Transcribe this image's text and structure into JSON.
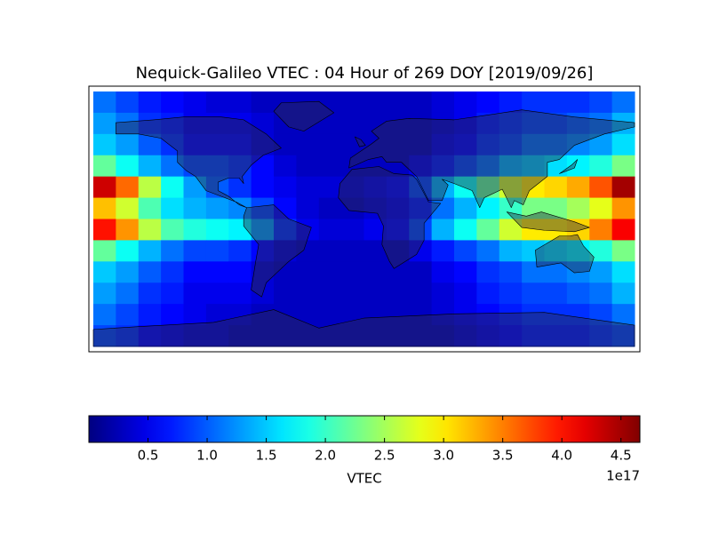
{
  "chart_data": {
    "type": "heatmap",
    "title": "Nequick-Galileo VTEC : 04 Hour of 269 DOY [2019/09/26]",
    "colormap": "jet",
    "values": [
      [
        1.1,
        0.9,
        0.7,
        0.6,
        0.5,
        0.4,
        0.4,
        0.3,
        0.3,
        0.3,
        0.3,
        0.3,
        0.3,
        0.3,
        0.3,
        0.4,
        0.5,
        0.6,
        0.7,
        0.8,
        0.8,
        0.8,
        0.9,
        1.1
      ],
      [
        1.3,
        1.1,
        0.8,
        0.7,
        0.5,
        0.5,
        0.5,
        0.4,
        0.3,
        0.3,
        0.3,
        0.3,
        0.3,
        0.3,
        0.3,
        0.4,
        0.5,
        0.7,
        0.8,
        0.9,
        0.9,
        1.0,
        1.1,
        1.4
      ],
      [
        1.5,
        1.3,
        1.0,
        0.8,
        0.6,
        0.6,
        0.6,
        0.4,
        0.3,
        0.3,
        0.3,
        0.3,
        0.3,
        0.3,
        0.3,
        0.5,
        0.6,
        0.8,
        0.9,
        1.1,
        1.1,
        1.2,
        1.3,
        1.6
      ],
      [
        2.2,
        1.8,
        1.4,
        1.1,
        0.9,
        0.9,
        0.8,
        0.6,
        0.4,
        0.3,
        0.3,
        0.3,
        0.3,
        0.3,
        0.5,
        0.7,
        0.9,
        1.1,
        1.4,
        1.5,
        1.6,
        1.7,
        1.9,
        2.3
      ],
      [
        4.3,
        3.6,
        2.6,
        1.8,
        1.3,
        1.0,
        0.8,
        0.6,
        0.5,
        0.4,
        0.4,
        0.4,
        0.5,
        0.6,
        0.9,
        1.4,
        1.8,
        2.2,
        2.7,
        3.0,
        3.1,
        3.3,
        3.7,
        4.5
      ],
      [
        3.2,
        2.7,
        2.1,
        1.6,
        1.4,
        1.3,
        1.2,
        0.9,
        0.6,
        0.4,
        0.3,
        0.3,
        0.4,
        0.5,
        0.7,
        1.1,
        1.4,
        1.7,
        2.0,
        2.3,
        2.3,
        2.5,
        2.8,
        3.4
      ],
      [
        4.0,
        3.4,
        2.6,
        2.1,
        1.9,
        1.8,
        1.7,
        1.3,
        0.8,
        0.5,
        0.4,
        0.4,
        0.5,
        0.6,
        0.9,
        1.4,
        1.8,
        2.2,
        2.7,
        3.0,
        3.0,
        3.1,
        3.5,
        4.1
      ],
      [
        2.2,
        1.8,
        1.4,
        1.1,
        0.9,
        0.9,
        0.8,
        0.6,
        0.4,
        0.3,
        0.3,
        0.3,
        0.3,
        0.3,
        0.5,
        0.7,
        0.9,
        1.1,
        1.4,
        1.5,
        1.6,
        1.7,
        1.9,
        2.3
      ],
      [
        1.5,
        1.3,
        1.0,
        0.8,
        0.6,
        0.6,
        0.6,
        0.4,
        0.3,
        0.3,
        0.3,
        0.3,
        0.3,
        0.3,
        0.3,
        0.5,
        0.6,
        0.8,
        0.9,
        1.1,
        1.1,
        1.2,
        1.3,
        1.6
      ],
      [
        1.3,
        1.1,
        0.8,
        0.7,
        0.5,
        0.5,
        0.5,
        0.4,
        0.3,
        0.3,
        0.3,
        0.3,
        0.3,
        0.3,
        0.3,
        0.4,
        0.5,
        0.7,
        0.8,
        0.9,
        0.9,
        1.0,
        1.1,
        1.4
      ],
      [
        1.1,
        0.9,
        0.7,
        0.6,
        0.5,
        0.4,
        0.4,
        0.3,
        0.3,
        0.3,
        0.3,
        0.3,
        0.3,
        0.3,
        0.3,
        0.4,
        0.5,
        0.6,
        0.7,
        0.8,
        0.8,
        0.8,
        0.9,
        1.1
      ],
      [
        0.9,
        0.8,
        0.6,
        0.5,
        0.4,
        0.4,
        0.3,
        0.3,
        0.3,
        0.3,
        0.3,
        0.3,
        0.3,
        0.3,
        0.3,
        0.3,
        0.4,
        0.5,
        0.6,
        0.7,
        0.7,
        0.7,
        0.8,
        0.9
      ]
    ],
    "clim": [
      0,
      4.66
    ],
    "cticks": [
      0.5,
      1.0,
      1.5,
      2.0,
      2.5,
      3.0,
      3.5,
      4.0,
      4.5
    ],
    "colorbar_label": "VTEC",
    "colorbar_offset": "1e17"
  }
}
